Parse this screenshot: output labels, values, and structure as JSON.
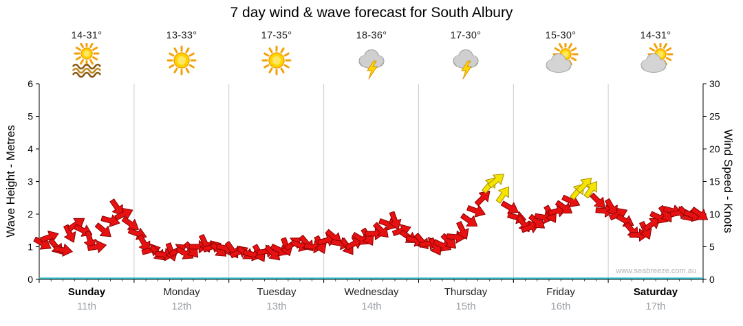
{
  "title": "7 day wind & wave forecast for South Albury",
  "watermark": "www.seabreeze.com.au",
  "days": [
    {
      "name": "Sunday",
      "date": "11th",
      "temp": "14-31°",
      "icon": "sun-water",
      "bold": true
    },
    {
      "name": "Monday",
      "date": "12th",
      "temp": "13-33°",
      "icon": "sunny",
      "bold": false
    },
    {
      "name": "Tuesday",
      "date": "13th",
      "temp": "17-35°",
      "icon": "sunny",
      "bold": false
    },
    {
      "name": "Wednesday",
      "date": "14th",
      "temp": "18-36°",
      "icon": "storm",
      "bold": false
    },
    {
      "name": "Thursday",
      "date": "15th",
      "temp": "17-30°",
      "icon": "storm",
      "bold": false
    },
    {
      "name": "Friday",
      "date": "16th",
      "temp": "15-30°",
      "icon": "sun-cloud",
      "bold": false
    },
    {
      "name": "Saturday",
      "date": "17th",
      "temp": "14-31°",
      "icon": "sun-cloud",
      "bold": true
    }
  ],
  "axes": {
    "left_label": "Wave Height - Metres",
    "right_label": "Wind Speed - Knots"
  },
  "chart_data": {
    "type": "scatter",
    "marker": "wind-direction-arrow",
    "title": "7 day wind & wave forecast for South Albury",
    "categories": [
      "Sunday 11th",
      "Monday 12th",
      "Tuesday 13th",
      "Wednesday 14th",
      "Thursday 15th",
      "Friday 16th",
      "Saturday 17th"
    ],
    "points_per_day": 14,
    "ylabel_left": "Wave Height - Metres",
    "ylim_left": [
      0,
      6
    ],
    "yticks_left": [
      0,
      1,
      2,
      3,
      4,
      5,
      6
    ],
    "ylabel_right": "Wind Speed - Knots",
    "ylim_right": [
      0,
      30
    ],
    "yticks_right": [
      0,
      5,
      10,
      15,
      20,
      25,
      30
    ],
    "grid": "vertical-day-boundaries",
    "wave_height_metres_series": {
      "constant": 0,
      "color": "#35bfcb"
    },
    "wind_arrows": {
      "strong_threshold_knots": 13,
      "colors": {
        "normal_fill": "#e81111",
        "normal_stroke": "#8b0000",
        "strong_fill": "#f5e400",
        "strong_stroke": "#a98f00"
      },
      "speeds_knots": [
        5.5,
        6.5,
        5.0,
        4.5,
        7.0,
        8.5,
        7.5,
        6.0,
        5.0,
        7.5,
        9.0,
        11.0,
        10.0,
        8.5,
        7.0,
        5.5,
        4.5,
        4.0,
        3.8,
        4.2,
        4.5,
        4.0,
        4.5,
        5.0,
        5.5,
        5.0,
        4.5,
        4.8,
        4.5,
        4.2,
        4.0,
        3.8,
        4.0,
        4.3,
        4.0,
        4.5,
        5.0,
        5.5,
        5.2,
        5.5,
        5.0,
        5.3,
        6.0,
        6.5,
        5.5,
        5.0,
        5.5,
        6.2,
        6.5,
        7.0,
        7.5,
        8.5,
        9.0,
        7.5,
        6.5,
        6.0,
        5.8,
        5.5,
        5.0,
        5.2,
        5.8,
        6.5,
        7.5,
        9.0,
        10.5,
        12.5,
        14.5,
        15.2,
        13.0,
        11.0,
        9.5,
        8.5,
        8.0,
        8.8,
        9.5,
        10.0,
        10.5,
        11.0,
        12.0,
        13.5,
        14.5,
        13.8,
        12.0,
        10.5,
        11.0,
        10.0,
        9.0,
        7.5,
        6.8,
        7.5,
        8.5,
        9.5,
        10.0,
        10.5,
        10.2,
        10.0,
        9.8,
        10.0
      ],
      "directions_deg": [
        30,
        -20,
        50,
        10,
        65,
        -35,
        25,
        75,
        -10,
        40,
        15,
        55,
        -25,
        35,
        20,
        60,
        -15,
        45,
        5,
        70,
        -30,
        30,
        50,
        0,
        65,
        -20,
        40,
        10,
        55,
        -25,
        35,
        15,
        60,
        -10,
        45,
        25,
        70,
        -35,
        20,
        50,
        5,
        65,
        -15,
        40,
        10,
        55,
        -30,
        30,
        60,
        0,
        45,
        20,
        70,
        -20,
        35,
        15,
        50,
        -10,
        60,
        25,
        45,
        5,
        65,
        35,
        20,
        -45,
        -50,
        -40,
        -55,
        30,
        15,
        55,
        -20,
        40,
        10,
        60,
        -15,
        35,
        25,
        -50,
        -45,
        -55,
        45,
        5,
        60,
        -25,
        30,
        50,
        0,
        65,
        -35,
        25,
        55,
        15,
        -10,
        45,
        20,
        35
      ]
    }
  }
}
